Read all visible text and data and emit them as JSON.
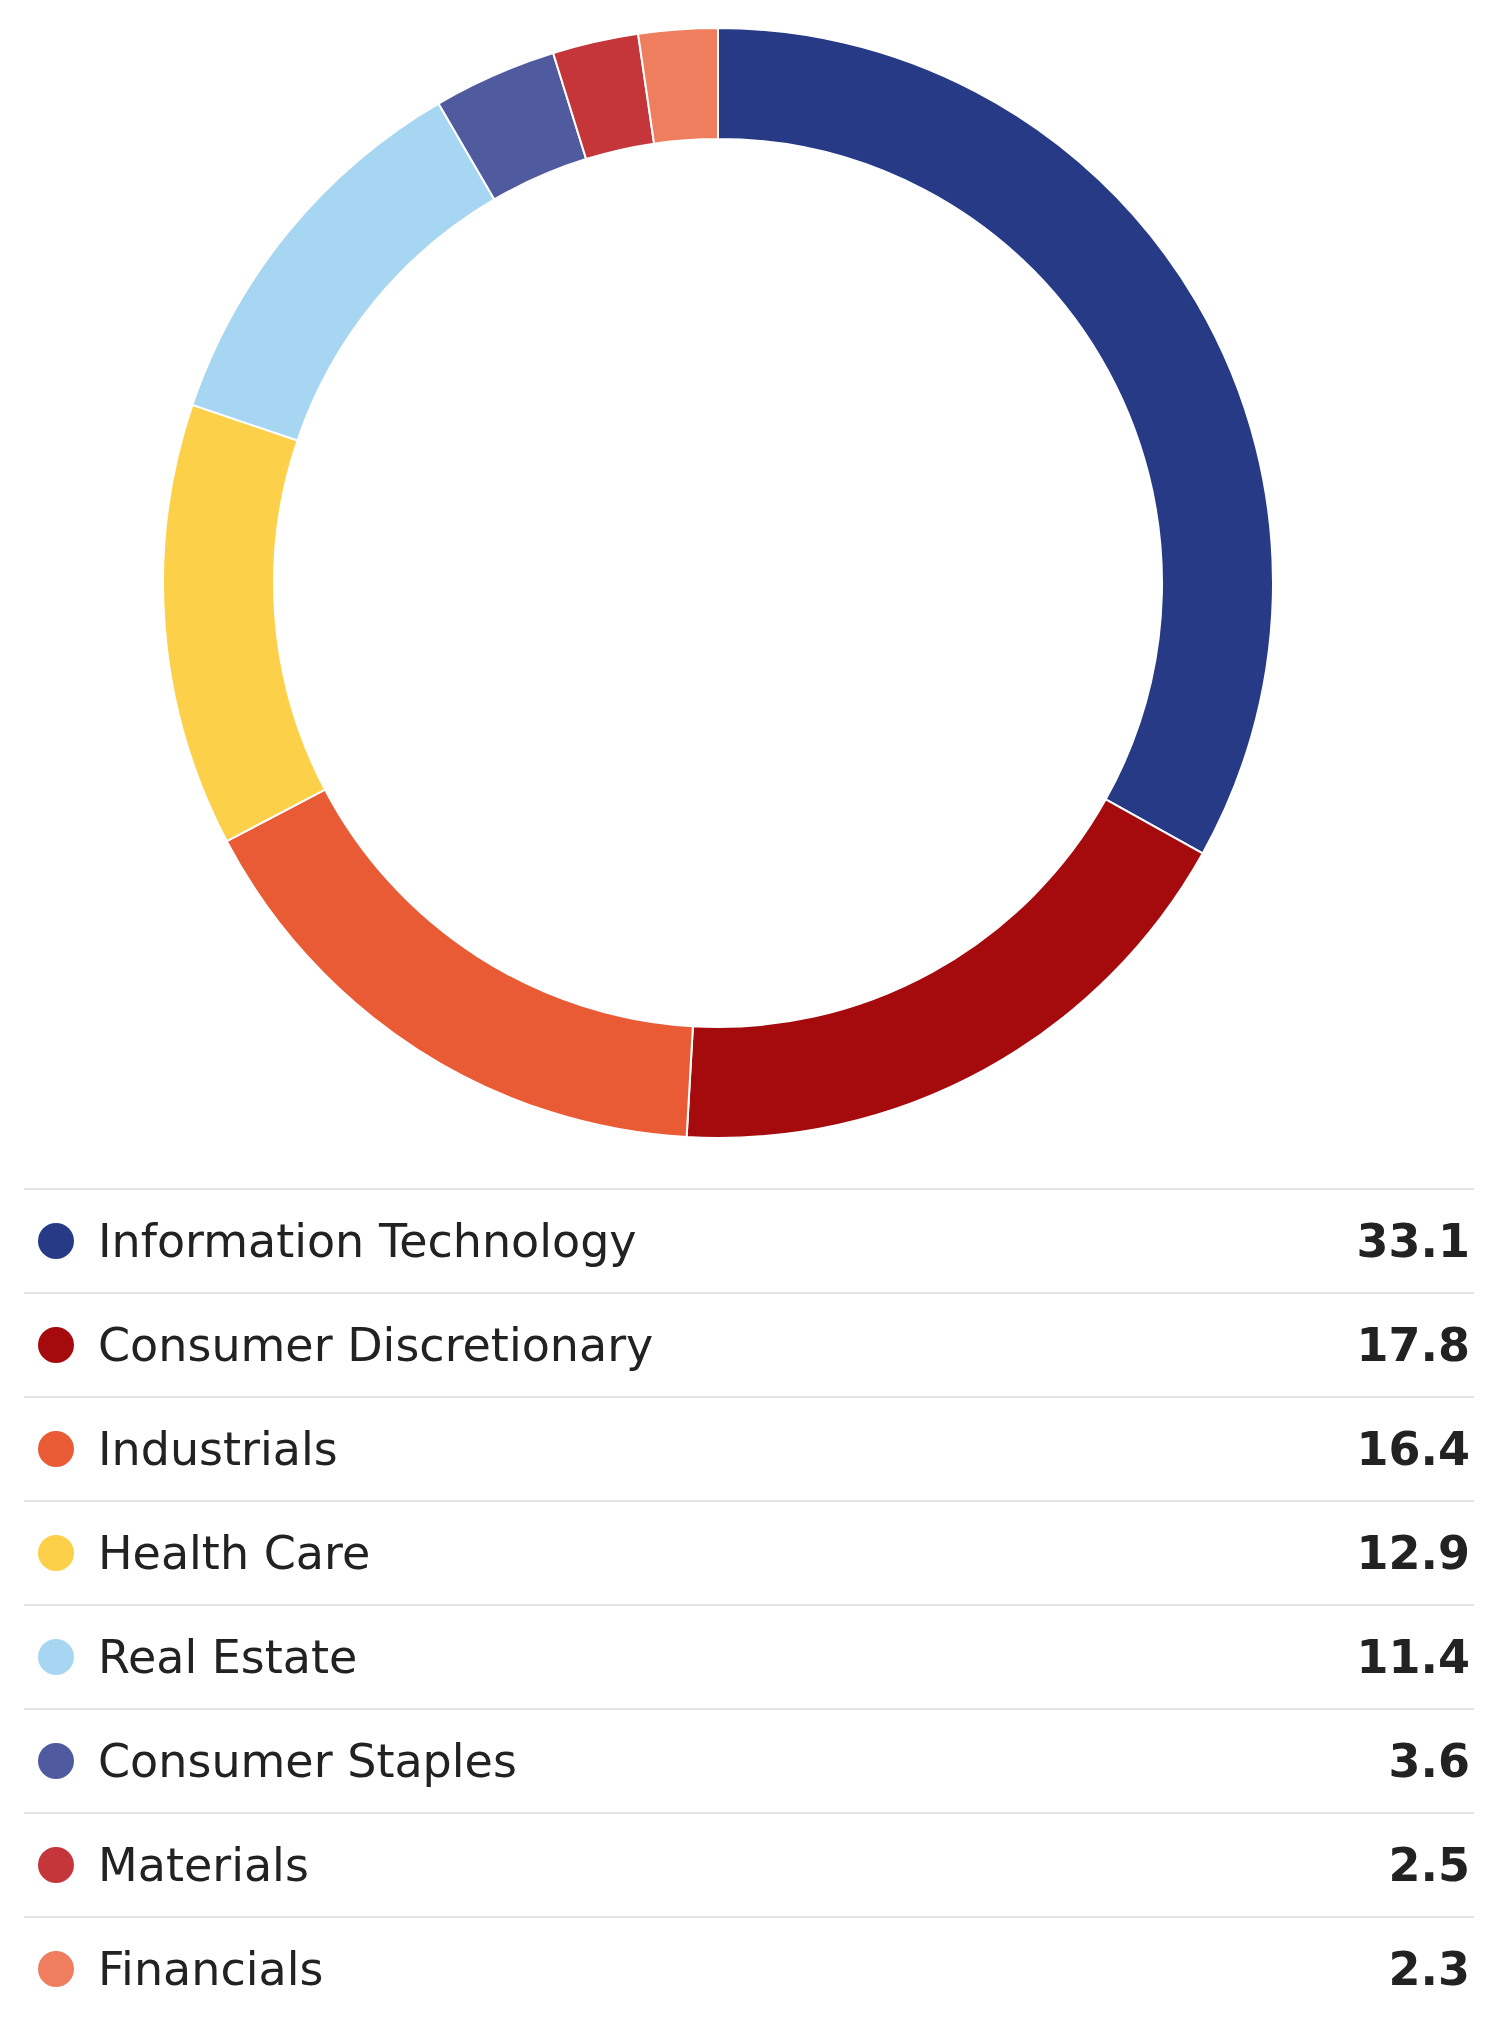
{
  "chart_data": {
    "type": "donut",
    "categories": [
      "Information Technology",
      "Consumer Discretionary",
      "Industrials",
      "Health Care",
      "Real Estate",
      "Consumer Staples",
      "Materials",
      "Financials"
    ],
    "values": [
      33.1,
      17.8,
      16.4,
      12.9,
      11.4,
      3.6,
      2.5,
      2.3
    ],
    "colors": [
      "#263a86",
      "#a50a0d",
      "#e95b35",
      "#fdd049",
      "#a7d6f2",
      "#4f5b9e",
      "#c4363a",
      "#ef7e5f"
    ],
    "legend": "bottom",
    "data_labels": true
  }
}
